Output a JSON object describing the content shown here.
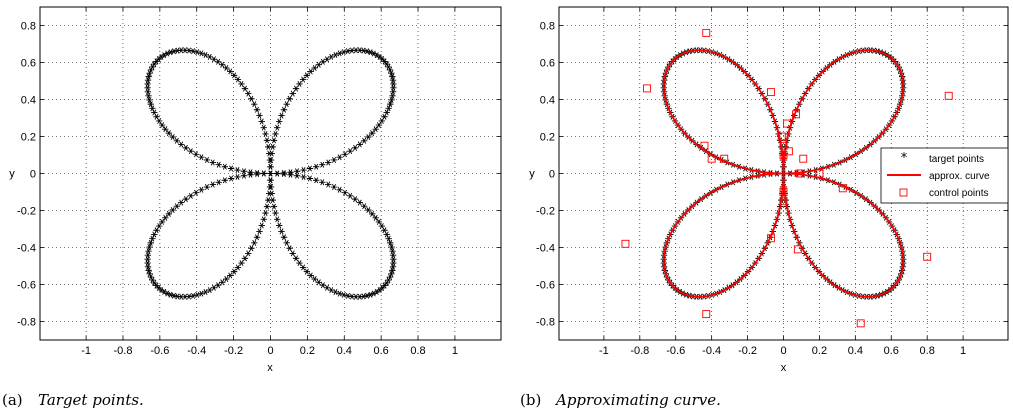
{
  "chart_data": [
    {
      "type": "scatter",
      "curve": "rhodonea r = a*sin(2t), four petals along the diagonals",
      "petal_amplitude": 0.866,
      "point_count": 300,
      "xlabel": "x",
      "ylabel": "y",
      "xlim": [
        -1.25,
        1.25
      ],
      "ylim": [
        -0.9,
        0.9
      ],
      "xticks": [
        "-1",
        "-0.8",
        "-0.6",
        "-0.4",
        "-0.2",
        "0",
        "0.2",
        "0.4",
        "0.6",
        "0.8",
        "1"
      ],
      "yticks": [
        "-0.8",
        "-0.6",
        "-0.4",
        "-0.2",
        "0",
        "0.2",
        "0.4",
        "0.6",
        "0.8"
      ],
      "grid": true,
      "series": [
        {
          "name": "",
          "marker": "asterisk",
          "color": "#000000"
        }
      ],
      "caption_label": "(a)",
      "caption": "Target points."
    },
    {
      "type": "scatter",
      "curve": "rhodonea r = a*sin(2t), four petals along the diagonals",
      "petal_amplitude": 0.866,
      "point_count": 300,
      "xlabel": "x",
      "ylabel": "y",
      "xlim": [
        -1.25,
        1.25
      ],
      "ylim": [
        -0.9,
        0.9
      ],
      "xticks": [
        "-1",
        "-0.8",
        "-0.6",
        "-0.4",
        "-0.2",
        "0",
        "0.2",
        "0.4",
        "0.6",
        "0.8",
        "1"
      ],
      "yticks": [
        "-0.8",
        "-0.6",
        "-0.4",
        "-0.2",
        "0",
        "0.2",
        "0.4",
        "0.6",
        "0.8"
      ],
      "grid": true,
      "legend_position": "right",
      "series": [
        {
          "name": "target points",
          "marker": "asterisk",
          "color": "#000000"
        },
        {
          "name": "approx. curve",
          "marker": "line",
          "color": "#ff0000"
        },
        {
          "name": "control points",
          "marker": "square",
          "color": "#ff0000",
          "x": [
            -0.43,
            -0.76,
            0.92,
            -0.07,
            -0.44,
            0.02,
            0.07,
            -0.01,
            0.03,
            -0.4,
            0.11,
            0.08,
            -0.07,
            0.09,
            -0.88,
            0.8,
            -0.43,
            0.43,
            0.0,
            0.0,
            -0.15,
            0.2,
            -0.33,
            0.33,
            0.0,
            0.0
          ],
          "y": [
            0.76,
            0.46,
            0.42,
            0.44,
            0.15,
            0.27,
            0.32,
            0.2,
            0.12,
            0.08,
            0.08,
            -0.41,
            -0.35,
            0.0,
            -0.38,
            -0.45,
            -0.76,
            -0.81,
            0.15,
            -0.15,
            0.0,
            0.0,
            0.08,
            -0.08,
            0.1,
            -0.1
          ]
        }
      ],
      "caption_label": "(b)",
      "caption": "Approximating curve."
    }
  ]
}
